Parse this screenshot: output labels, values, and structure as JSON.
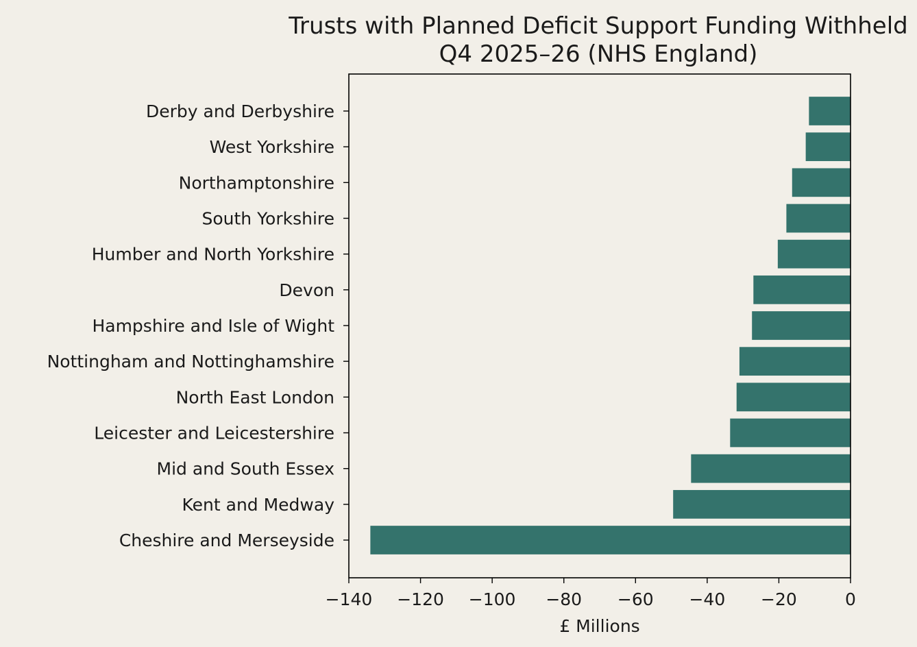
{
  "chart_data": {
    "type": "bar",
    "orientation": "horizontal",
    "title": "Trusts with Planned Deficit Support Funding Withheld",
    "subtitle": "Q4 2025–26 (NHS England)",
    "xlabel": "£ Millions",
    "ylabel": "",
    "xlim": [
      -140,
      0
    ],
    "xticks": [
      -140,
      -120,
      -100,
      -80,
      -60,
      -40,
      -20,
      0
    ],
    "xtick_labels": [
      "−140",
      "−120",
      "−100",
      "−80",
      "−60",
      "−40",
      "−20",
      "0"
    ],
    "categories": [
      "Derby and Derbyshire",
      "West Yorkshire",
      "Northamptonshire",
      "South Yorkshire",
      "Humber and North Yorkshire",
      "Devon",
      "Hampshire and Isle of Wight",
      "Nottingham and Nottinghamshire",
      "North East London",
      "Leicester and Leicestershire",
      "Mid and South Essex",
      "Kent and Medway",
      "Cheshire and Merseyside"
    ],
    "values": [
      -11.6,
      -12.5,
      -16.3,
      -17.9,
      -20.3,
      -27.1,
      -27.5,
      -31.0,
      -31.8,
      -33.6,
      -44.5,
      -49.5,
      -134.0
    ],
    "bar_color": "#34736c",
    "grid": false,
    "legend": "none"
  }
}
